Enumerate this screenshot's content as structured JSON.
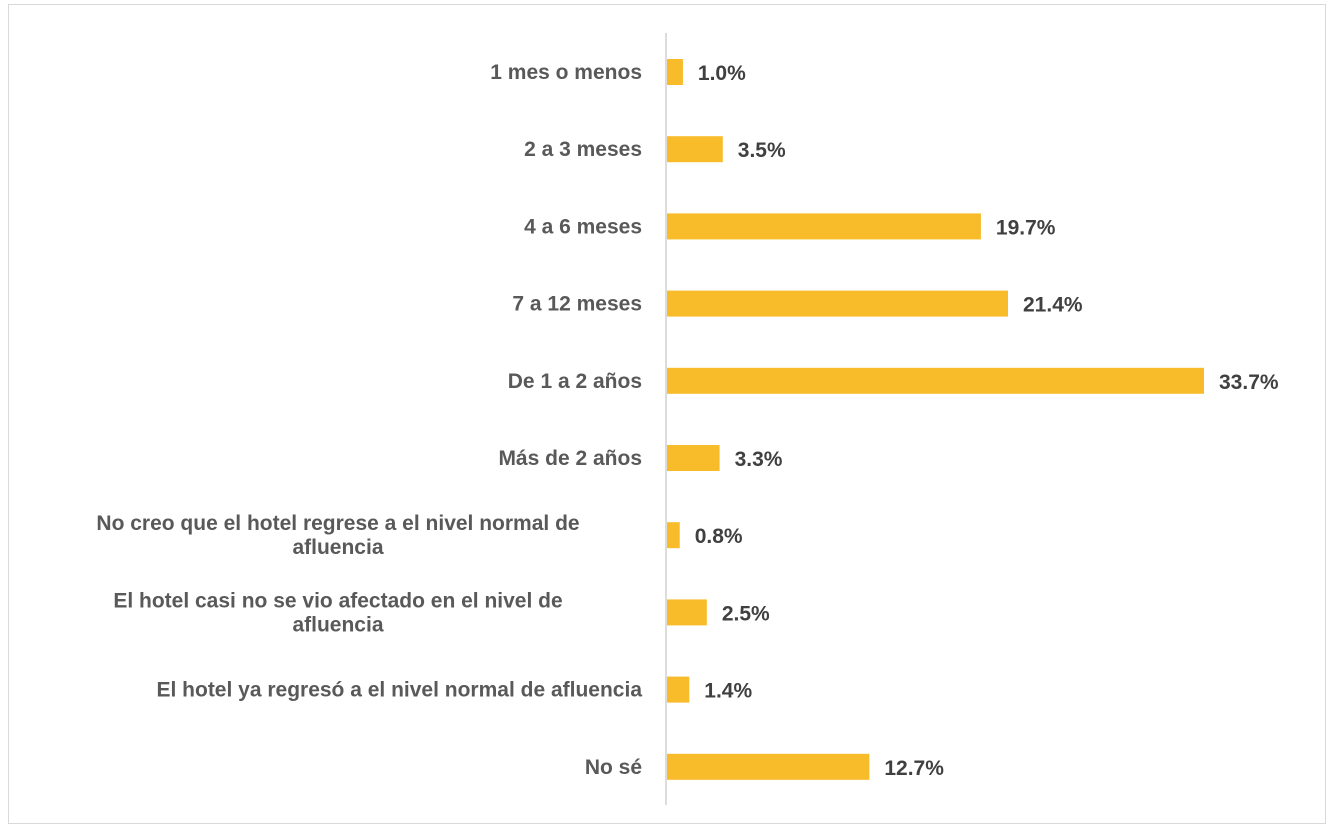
{
  "chart_data": {
    "type": "bar",
    "orientation": "horizontal",
    "categories": [
      [
        "1 mes o menos"
      ],
      [
        "2 a 3 meses"
      ],
      [
        "4 a 6 meses"
      ],
      [
        "7 a 12 meses"
      ],
      [
        "De 1 a 2 años"
      ],
      [
        "Más de 2 años"
      ],
      [
        "No creo que el hotel regrese a el nivel normal de",
        "afluencia"
      ],
      [
        "El hotel casi no se vio afectado en el nivel de",
        "afluencia"
      ],
      [
        "El hotel ya regresó a el nivel normal de afluencia"
      ],
      [
        "No sé"
      ]
    ],
    "values": [
      1.0,
      3.5,
      19.7,
      21.4,
      33.7,
      3.3,
      0.8,
      2.5,
      1.4,
      12.7
    ],
    "data_labels": [
      "1.0%",
      "3.5%",
      "19.7%",
      "21.4%",
      "33.7%",
      "3.3%",
      "0.8%",
      "2.5%",
      "1.4%",
      "12.7%"
    ],
    "bar_color": "#F8BC2A",
    "axis_color": "#d0d0d0",
    "xlim": [
      0,
      33.7
    ],
    "grid": false,
    "legend": "none"
  }
}
